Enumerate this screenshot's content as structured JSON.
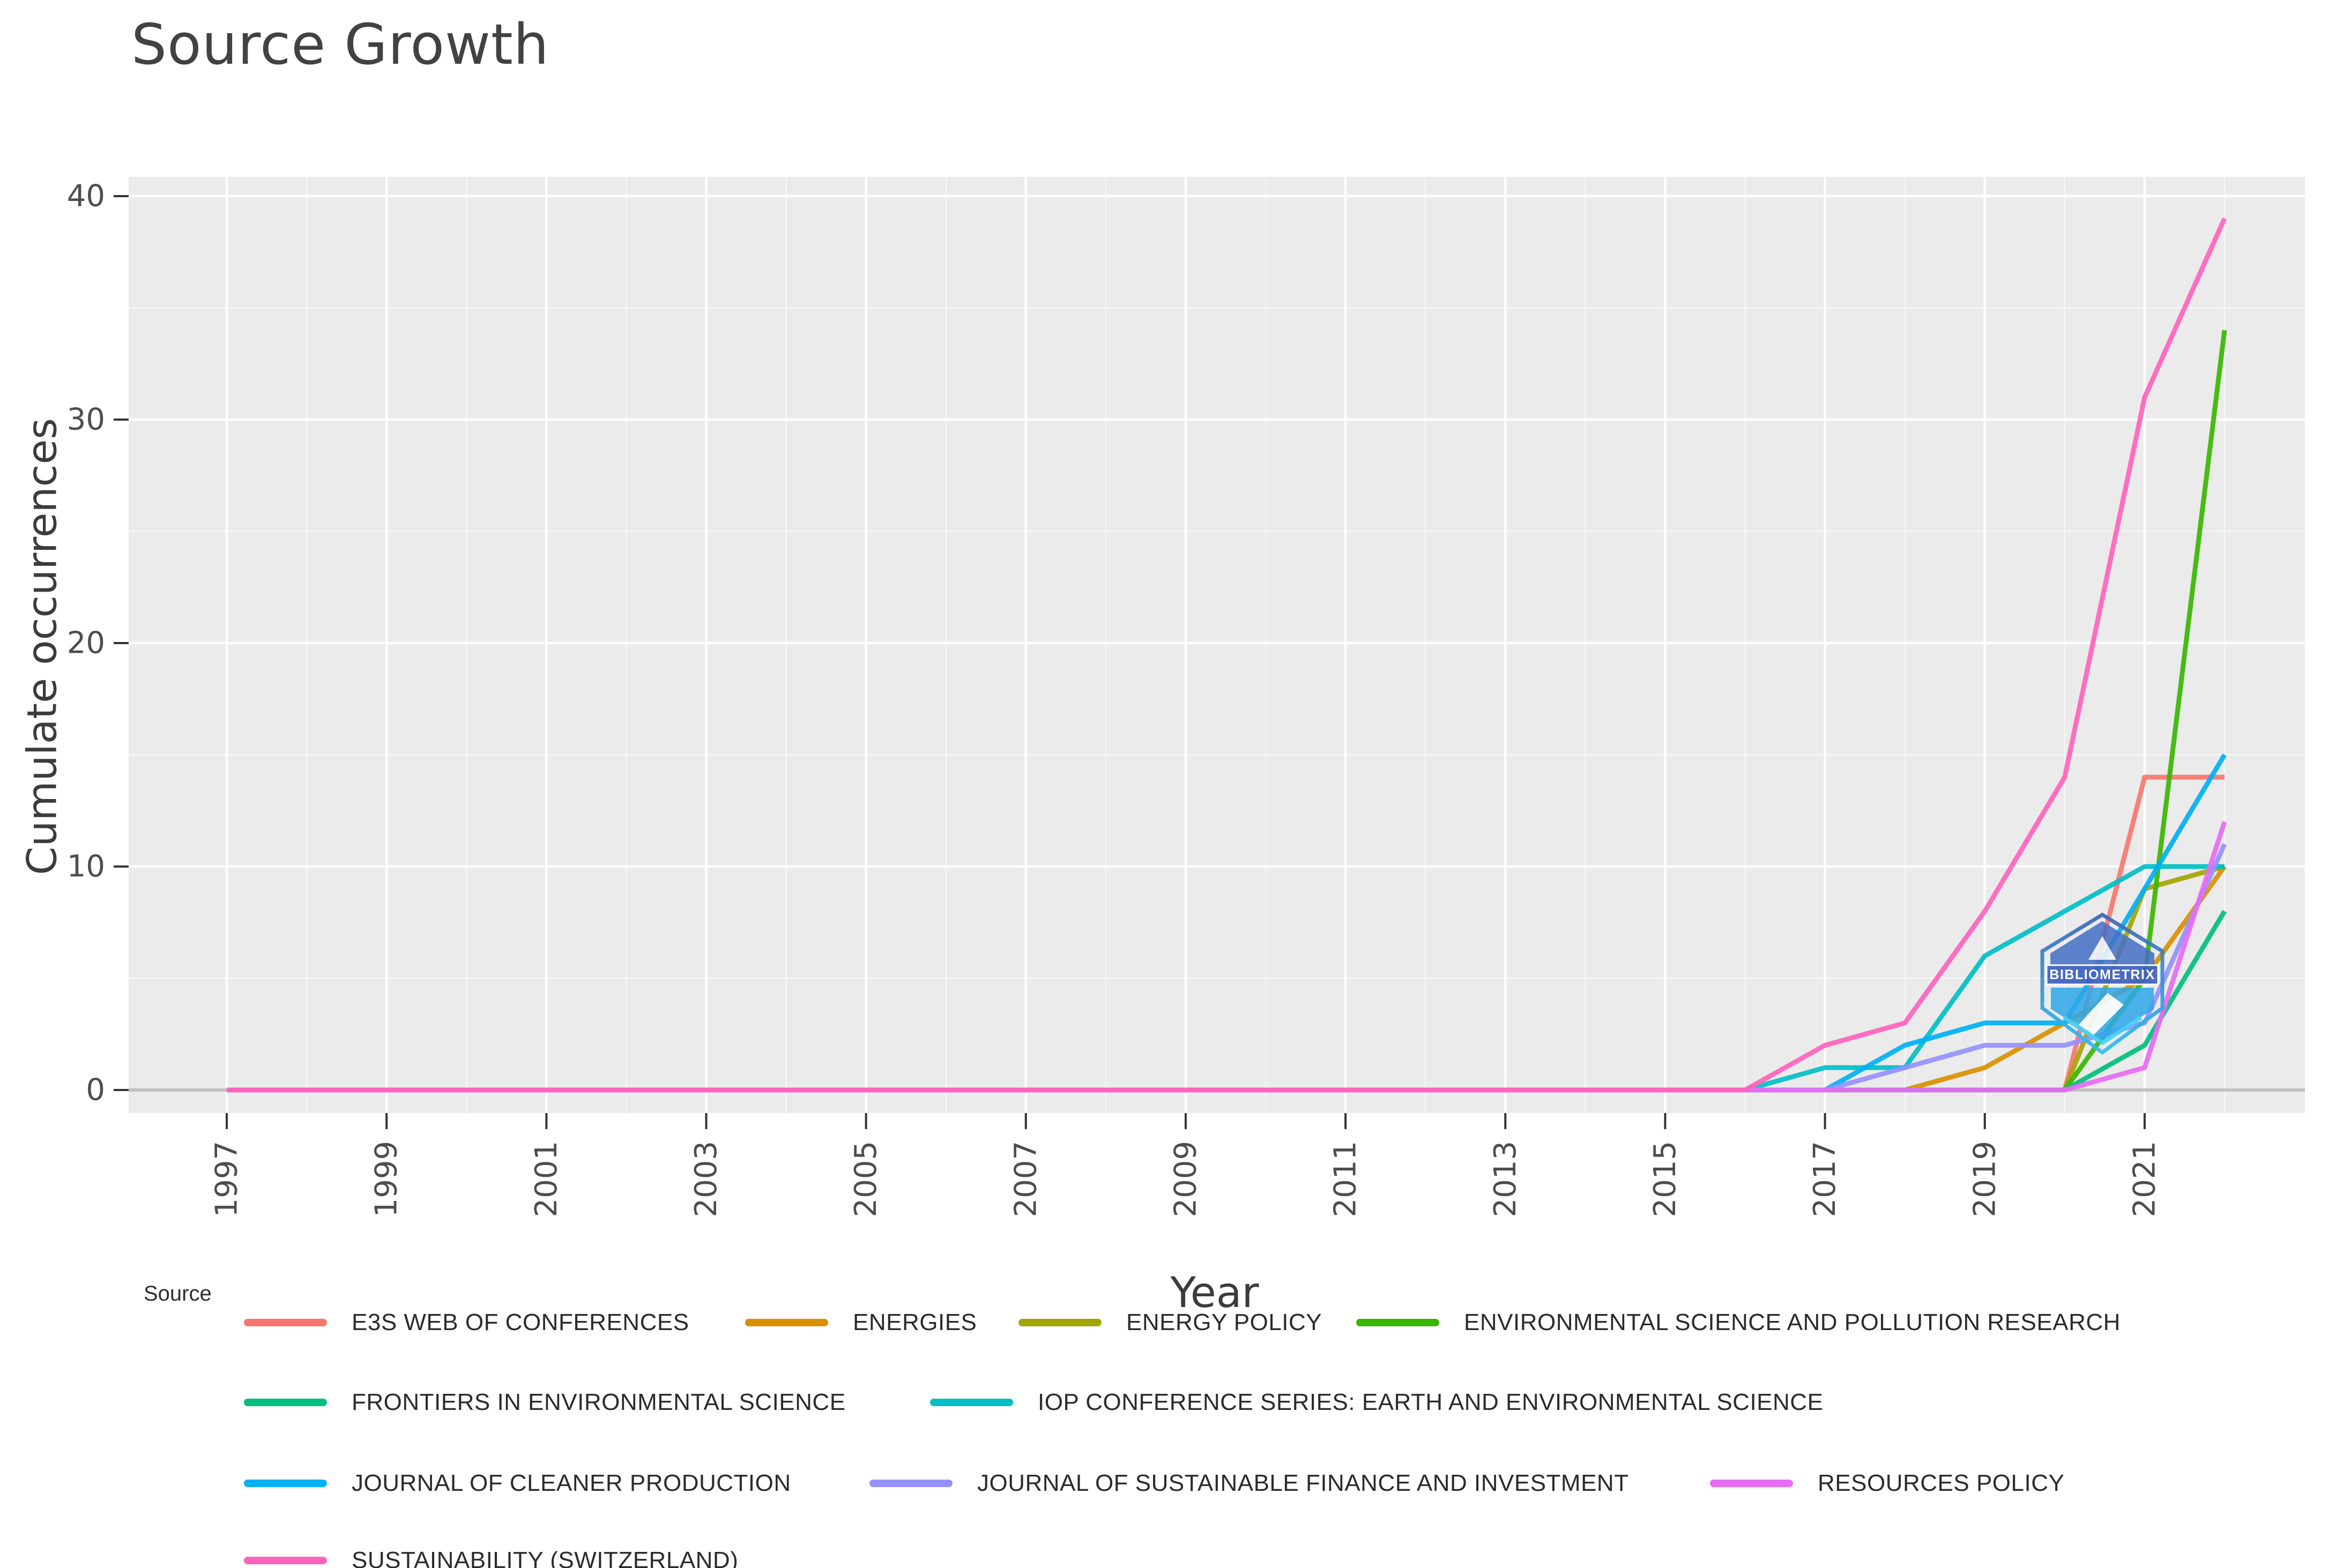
{
  "title": "Source Growth",
  "axes": {
    "x_label": "Year",
    "y_label": "Cumulate occurrences",
    "x_ticks": [
      1997,
      1999,
      2001,
      2003,
      2005,
      2007,
      2009,
      2011,
      2013,
      2015,
      2017,
      2019,
      2021
    ],
    "x_minor_ticks": [
      1998,
      2000,
      2002,
      2004,
      2006,
      2008,
      2010,
      2012,
      2014,
      2016,
      2018,
      2020,
      2022
    ],
    "y_ticks": [
      0,
      10,
      20,
      30,
      40
    ],
    "y_minor_ticks": [
      5,
      15,
      25,
      35
    ]
  },
  "legend": {
    "title": "Source",
    "rows": [
      [
        0,
        1,
        2,
        3
      ],
      [
        4,
        5
      ],
      [
        6,
        7,
        8
      ],
      [
        9
      ]
    ]
  },
  "watermark": {
    "text": "BIBLIOMETRIX"
  },
  "colors": {
    "panel_background": "#EBEBEB",
    "grid_major": "#FFFFFF",
    "zero_line": "#C2C2C2",
    "tick_mark": "#333333",
    "tick_label": "#4D4D4D"
  },
  "chart_data": {
    "type": "line",
    "title": "Source Growth",
    "xlabel": "Year",
    "ylabel": "Cumulate occurrences",
    "x": [
      1997,
      1998,
      1999,
      2000,
      2001,
      2002,
      2003,
      2004,
      2005,
      2006,
      2007,
      2008,
      2009,
      2010,
      2011,
      2012,
      2013,
      2014,
      2015,
      2016,
      2017,
      2018,
      2019,
      2020,
      2021,
      2022
    ],
    "ylim": [
      0,
      40
    ],
    "grid": true,
    "legend_position": "bottom",
    "series": [
      {
        "name": "E3S WEB OF CONFERENCES",
        "color": "#F8766D",
        "values": [
          0,
          0,
          0,
          0,
          0,
          0,
          0,
          0,
          0,
          0,
          0,
          0,
          0,
          0,
          0,
          0,
          0,
          0,
          0,
          0,
          0,
          0,
          0,
          0,
          14,
          14
        ]
      },
      {
        "name": "ENERGIES",
        "color": "#D89000",
        "values": [
          0,
          0,
          0,
          0,
          0,
          0,
          0,
          0,
          0,
          0,
          0,
          0,
          0,
          0,
          0,
          0,
          0,
          0,
          0,
          0,
          0,
          0,
          1,
          3,
          5,
          10
        ]
      },
      {
        "name": "ENERGY POLICY",
        "color": "#A3A500",
        "values": [
          0,
          0,
          0,
          0,
          0,
          0,
          0,
          0,
          0,
          0,
          0,
          0,
          0,
          0,
          0,
          0,
          0,
          0,
          0,
          0,
          0,
          0,
          0,
          0,
          9,
          10
        ]
      },
      {
        "name": "ENVIRONMENTAL SCIENCE AND POLLUTION RESEARCH",
        "color": "#39B600",
        "values": [
          0,
          0,
          0,
          0,
          0,
          0,
          0,
          0,
          0,
          0,
          0,
          0,
          0,
          0,
          0,
          0,
          0,
          0,
          0,
          0,
          0,
          0,
          0,
          0,
          5,
          34
        ]
      },
      {
        "name": "FRONTIERS IN ENVIRONMENTAL SCIENCE",
        "color": "#00BF7D",
        "values": [
          0,
          0,
          0,
          0,
          0,
          0,
          0,
          0,
          0,
          0,
          0,
          0,
          0,
          0,
          0,
          0,
          0,
          0,
          0,
          0,
          0,
          0,
          0,
          0,
          2,
          8
        ]
      },
      {
        "name": "IOP CONFERENCE SERIES: EARTH AND ENVIRONMENTAL SCIENCE",
        "color": "#00BFC4",
        "values": [
          0,
          0,
          0,
          0,
          0,
          0,
          0,
          0,
          0,
          0,
          0,
          0,
          0,
          0,
          0,
          0,
          0,
          0,
          0,
          0,
          1,
          1,
          6,
          8,
          10,
          10
        ]
      },
      {
        "name": "JOURNAL OF CLEANER PRODUCTION",
        "color": "#00B0F6",
        "values": [
          0,
          0,
          0,
          0,
          0,
          0,
          0,
          0,
          0,
          0,
          0,
          0,
          0,
          0,
          0,
          0,
          0,
          0,
          0,
          0,
          0,
          2,
          3,
          3,
          9,
          15
        ]
      },
      {
        "name": "JOURNAL OF SUSTAINABLE FINANCE AND INVESTMENT",
        "color": "#9590FF",
        "values": [
          0,
          0,
          0,
          0,
          0,
          0,
          0,
          0,
          0,
          0,
          0,
          0,
          0,
          0,
          0,
          0,
          0,
          0,
          0,
          0,
          0,
          1,
          2,
          2,
          3,
          11
        ]
      },
      {
        "name": "RESOURCES POLICY",
        "color": "#E76BF3",
        "values": [
          0,
          0,
          0,
          0,
          0,
          0,
          0,
          0,
          0,
          0,
          0,
          0,
          0,
          0,
          0,
          0,
          0,
          0,
          0,
          0,
          0,
          0,
          0,
          0,
          1,
          12
        ]
      },
      {
        "name": "SUSTAINABILITY (SWITZERLAND)",
        "color": "#FF62BC",
        "values": [
          0,
          0,
          0,
          0,
          0,
          0,
          0,
          0,
          0,
          0,
          0,
          0,
          0,
          0,
          0,
          0,
          0,
          0,
          0,
          0,
          2,
          3,
          8,
          14,
          31,
          39
        ]
      }
    ]
  }
}
